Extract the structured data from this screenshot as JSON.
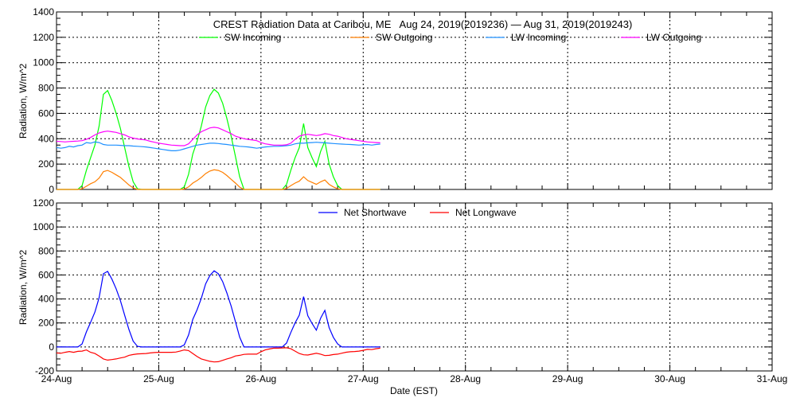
{
  "chart_data": [
    {
      "type": "line",
      "title": "CREST Radiation Data at Caribou, ME   Aug 24, 2019(2019236) — Aug 31, 2019(2019243)",
      "ylabel": "Radiation, W/m^2",
      "xlabel": "",
      "x_unit": "hours since 24-Aug 00:00 EST",
      "x_step_hours": 1,
      "xlim_days": [
        0,
        7
      ],
      "ylim": [
        0,
        1400
      ],
      "yticks": [
        0,
        200,
        400,
        600,
        800,
        1000,
        1200,
        1400
      ],
      "grid": true,
      "legend_placement": "top",
      "series": [
        {
          "name": "SW Incoming",
          "color": "#00ff00",
          "values": [
            0,
            0,
            0,
            0,
            0,
            0,
            30,
            150,
            250,
            350,
            500,
            750,
            780,
            700,
            600,
            480,
            330,
            180,
            60,
            5,
            0,
            0,
            0,
            0,
            0,
            0,
            0,
            0,
            0,
            0,
            20,
            120,
            280,
            380,
            500,
            650,
            740,
            790,
            760,
            680,
            560,
            420,
            260,
            100,
            0,
            0,
            0,
            0,
            0,
            0,
            0,
            0,
            0,
            0,
            40,
            150,
            250,
            330,
            520,
            330,
            250,
            180,
            300,
            380,
            200,
            100,
            30,
            0,
            0,
            0,
            0,
            0,
            0,
            0,
            0,
            0,
            0
          ]
        },
        {
          "name": "SW Outgoing",
          "color": "#ff7f00",
          "values": [
            0,
            0,
            0,
            0,
            0,
            0,
            5,
            25,
            45,
            60,
            90,
            140,
            150,
            135,
            115,
            95,
            65,
            35,
            12,
            0,
            0,
            0,
            0,
            0,
            0,
            0,
            0,
            0,
            0,
            0,
            3,
            20,
            50,
            70,
            95,
            125,
            145,
            155,
            150,
            135,
            110,
            80,
            50,
            18,
            0,
            0,
            0,
            0,
            0,
            0,
            0,
            0,
            0,
            0,
            8,
            30,
            50,
            65,
            100,
            70,
            55,
            40,
            60,
            75,
            40,
            20,
            5,
            0,
            0,
            0,
            0,
            0,
            0,
            0,
            0,
            0,
            0
          ]
        },
        {
          "name": "LW Incoming",
          "color": "#1e90ff",
          "values": [
            330,
            325,
            330,
            340,
            335,
            345,
            350,
            370,
            365,
            375,
            370,
            355,
            350,
            350,
            350,
            348,
            345,
            345,
            342,
            340,
            338,
            335,
            330,
            325,
            320,
            315,
            310,
            305,
            305,
            310,
            320,
            330,
            340,
            350,
            355,
            360,
            365,
            365,
            362,
            358,
            355,
            350,
            345,
            340,
            338,
            335,
            330,
            325,
            330,
            335,
            338,
            340,
            340,
            342,
            345,
            350,
            360,
            365,
            365,
            368,
            370,
            372,
            370,
            368,
            365,
            362,
            360,
            358,
            356,
            355,
            352,
            350,
            352,
            355,
            350,
            355,
            358
          ]
        },
        {
          "name": "LW Outgoing",
          "color": "#ff00ff",
          "values": [
            380,
            378,
            375,
            378,
            380,
            382,
            385,
            395,
            410,
            430,
            445,
            455,
            460,
            455,
            450,
            440,
            430,
            415,
            405,
            398,
            395,
            390,
            380,
            372,
            365,
            360,
            355,
            350,
            348,
            345,
            345,
            360,
            395,
            430,
            455,
            470,
            485,
            490,
            485,
            470,
            455,
            440,
            420,
            410,
            400,
            395,
            390,
            385,
            370,
            360,
            355,
            350,
            350,
            350,
            352,
            365,
            395,
            420,
            430,
            435,
            430,
            425,
            430,
            440,
            435,
            425,
            420,
            410,
            400,
            395,
            390,
            385,
            380,
            375,
            372,
            370,
            368
          ]
        }
      ]
    },
    {
      "type": "line",
      "title": "",
      "ylabel": "Radiation, W/m^2",
      "xlabel": "Date (EST)",
      "x_unit": "hours since 24-Aug 00:00 EST",
      "x_step_hours": 1,
      "xlim_days": [
        0,
        7
      ],
      "xticks": [
        "24-Aug",
        "25-Aug",
        "26-Aug",
        "27-Aug",
        "28-Aug",
        "29-Aug",
        "30-Aug",
        "31-Aug"
      ],
      "ylim": [
        -200,
        1200
      ],
      "yticks": [
        -200,
        0,
        200,
        400,
        600,
        800,
        1000,
        1200
      ],
      "grid": true,
      "legend_placement": "top",
      "series": [
        {
          "name": "Net Shortwave",
          "color": "#0000ff",
          "values": [
            0,
            0,
            0,
            0,
            0,
            0,
            25,
            125,
            205,
            290,
            410,
            610,
            630,
            565,
            485,
            385,
            265,
            145,
            48,
            5,
            0,
            0,
            0,
            0,
            0,
            0,
            0,
            0,
            0,
            0,
            17,
            100,
            230,
            310,
            405,
            525,
            595,
            635,
            610,
            545,
            450,
            340,
            210,
            82,
            0,
            0,
            0,
            0,
            0,
            0,
            0,
            0,
            0,
            0,
            32,
            120,
            200,
            265,
            420,
            260,
            195,
            140,
            240,
            305,
            160,
            80,
            25,
            0,
            0,
            0,
            0,
            0,
            0,
            0,
            0,
            0,
            0
          ]
        },
        {
          "name": "Net Longwave",
          "color": "#ff0000",
          "values": [
            -50,
            -53,
            -45,
            -38,
            -45,
            -37,
            -35,
            -25,
            -45,
            -55,
            -75,
            -100,
            -110,
            -105,
            -100,
            -92,
            -85,
            -70,
            -63,
            -58,
            -57,
            -55,
            -50,
            -47,
            -45,
            -45,
            -45,
            -45,
            -43,
            -35,
            -25,
            -30,
            -55,
            -80,
            -100,
            -110,
            -120,
            -125,
            -123,
            -112,
            -100,
            -90,
            -75,
            -70,
            -62,
            -60,
            -60,
            -60,
            -40,
            -25,
            -17,
            -10,
            -10,
            -8,
            -7,
            -15,
            -35,
            -55,
            -65,
            -67,
            -60,
            -53,
            -60,
            -72,
            -70,
            -63,
            -60,
            -52,
            -44,
            -40,
            -38,
            -35,
            -28,
            -20,
            -22,
            -15,
            -10
          ]
        }
      ]
    }
  ]
}
